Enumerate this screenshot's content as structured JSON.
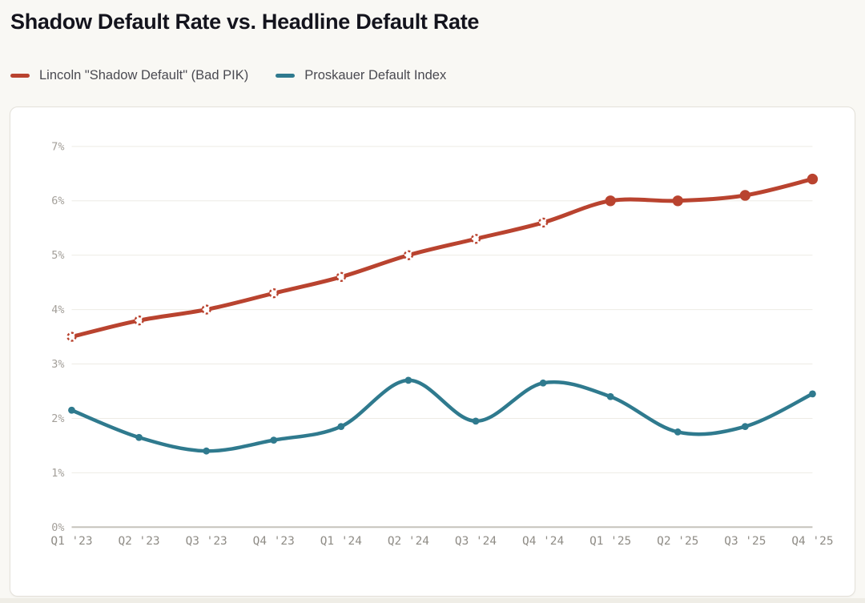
{
  "page": {
    "title": "Shadow Default Rate vs. Headline Default Rate"
  },
  "legend": {
    "items": [
      {
        "label": "Lincoln \"Shadow Default\" (Bad PIK)",
        "color": "#b9432f"
      },
      {
        "label": "Proskauer Default Index",
        "color": "#2f7a8e"
      }
    ]
  },
  "chart_data": {
    "type": "line",
    "title": "Shadow Default Rate vs. Headline Default Rate",
    "xlabel": "",
    "ylabel": "",
    "categories": [
      "Q1 '23",
      "Q2 '23",
      "Q3 '23",
      "Q4 '23",
      "Q1 '24",
      "Q2 '24",
      "Q3 '24",
      "Q4 '24",
      "Q1 '25",
      "Q2 '25",
      "Q3 '25",
      "Q4 '25"
    ],
    "series": [
      {
        "name": "Lincoln \"Shadow Default\" (Bad PIK)",
        "color": "#b9432f",
        "values": [
          3.5,
          3.8,
          4.0,
          4.3,
          4.6,
          5.0,
          5.3,
          5.6,
          6.0,
          6.0,
          6.1,
          6.4
        ],
        "line_width": 5,
        "markers": {
          "style": "dashed-open",
          "solid_from_index": 8,
          "open_radius": 5,
          "solid_radius": 6.7,
          "open_fill": "#ffffff"
        }
      },
      {
        "name": "Proskauer Default Index",
        "color": "#2f7a8e",
        "values": [
          2.15,
          1.65,
          1.4,
          1.6,
          1.85,
          2.7,
          1.95,
          2.65,
          2.4,
          1.75,
          1.85,
          2.45
        ],
        "line_width": 4.5,
        "markers": {
          "style": "solid",
          "solid_radius": 4.4
        }
      }
    ],
    "ylim": [
      0,
      7
    ],
    "y_tick_values": [
      0,
      1,
      2,
      3,
      4,
      5,
      6,
      7
    ],
    "y_ticks": [
      "0%",
      "1%",
      "2%",
      "3%",
      "4%",
      "5%",
      "6%",
      "7%"
    ],
    "grid": "horizontal",
    "smooth": true,
    "legend_position": "top-left-above-chart"
  },
  "colors": {
    "background": "#f9f8f4",
    "card_background": "#ffffff",
    "card_border": "#e4e1da",
    "gridline": "#edebe5",
    "baseline": "#c6c3bc",
    "title_text": "#14141d",
    "legend_text": "#4a4a51",
    "series_red": "#b9432f",
    "series_teal": "#2f7a8e"
  }
}
